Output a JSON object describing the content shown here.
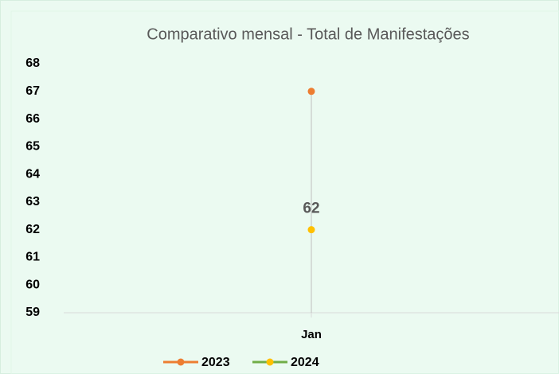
{
  "chart_data": {
    "type": "line",
    "title": "Comparativo mensal - Total de Manifestações",
    "categories": [
      "Jan"
    ],
    "series": [
      {
        "name": "2023",
        "color": "#ed7d31",
        "marker_color": "#ed7d31",
        "values": [
          67
        ]
      },
      {
        "name": "2024",
        "color": "#70ad47",
        "marker_color": "#ffc000",
        "values": [
          62
        ],
        "data_labels": true
      }
    ],
    "ylim": [
      59,
      68
    ],
    "yticks": [
      59,
      60,
      61,
      62,
      63,
      64,
      65,
      66,
      67,
      68
    ],
    "drop_lines": true,
    "legend": "bottom"
  }
}
